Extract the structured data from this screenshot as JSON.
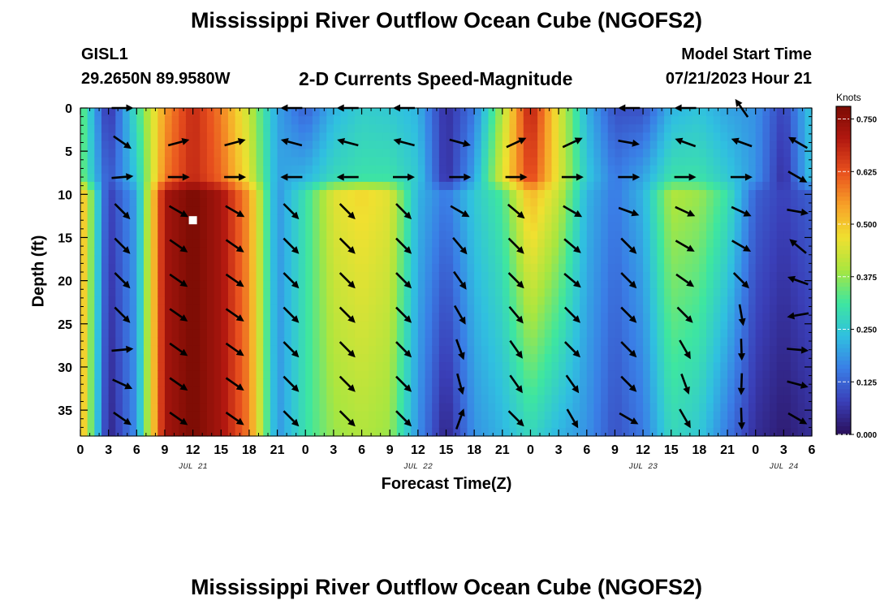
{
  "header": {
    "title": "Mississippi River Outflow Ocean Cube (NGOFS2)",
    "station": "GISL1",
    "coords": "29.2650N  89.9580W",
    "subtitle": "2-D Currents Speed-Magnitude",
    "model_start_label": "Model Start Time",
    "model_start_value": "07/21/2023 Hour 21",
    "footer_title": "Mississippi River Outflow Ocean Cube (NGOFS2)"
  },
  "colors": {
    "ramp": [
      "#2a0f5a",
      "#3a3fb8",
      "#3a7ee6",
      "#30c0e0",
      "#3ee6a0",
      "#a8e640",
      "#f0e030",
      "#f7a028",
      "#e8501e",
      "#b21810",
      "#7a0c04"
    ]
  },
  "chart_data": {
    "type": "heatmap",
    "title": "2-D Currents Speed-Magnitude",
    "xlabel": "Forecast Time(Z)",
    "ylabel": "Depth (ft)",
    "x_range_hours": [
      0,
      78
    ],
    "ylim": [
      0,
      38
    ],
    "y_inverted": true,
    "x_tick_labels": [
      "0",
      "3",
      "6",
      "9",
      "12",
      "15",
      "18",
      "21",
      "0",
      "3",
      "6",
      "9",
      "12",
      "15",
      "18",
      "21",
      "0",
      "3",
      "6",
      "9",
      "12",
      "15",
      "18",
      "21",
      "0",
      "3",
      "6"
    ],
    "y_ticks": [
      0,
      5,
      10,
      15,
      20,
      25,
      30,
      35
    ],
    "date_labels": [
      {
        "label": "JUL 21",
        "hour": 12
      },
      {
        "label": "JUL 22",
        "hour": 36
      },
      {
        "label": "JUL 23",
        "hour": 60
      },
      {
        "label": "JUL 24",
        "hour": 75
      }
    ],
    "colorbar": {
      "unit": "Knots",
      "min": 0.0,
      "max": 0.78,
      "tick_values": [
        0.0,
        0.125,
        0.25,
        0.375,
        0.5,
        0.625,
        0.75
      ],
      "tick_labels": [
        "0.000",
        "0.125",
        "0.250",
        "0.375",
        "0.500",
        "0.625",
        "0.750"
      ]
    },
    "time_hours": [
      0,
      3,
      6,
      9,
      12,
      15,
      18,
      21,
      24,
      27,
      30,
      33,
      36,
      39,
      42,
      45,
      48,
      51,
      54,
      57,
      60,
      63,
      66,
      69,
      72,
      75,
      78
    ],
    "depth_ft": [
      0,
      8,
      10,
      38
    ],
    "speed_knots": [
      [
        0.36,
        0.36,
        0.55,
        0.55
      ],
      [
        0.05,
        0.1,
        0.07,
        0.03
      ],
      [
        0.3,
        0.25,
        0.2,
        0.18
      ],
      [
        0.55,
        0.58,
        0.72,
        0.72
      ],
      [
        0.68,
        0.68,
        0.78,
        0.78
      ],
      [
        0.58,
        0.6,
        0.72,
        0.72
      ],
      [
        0.42,
        0.45,
        0.55,
        0.58
      ],
      [
        0.2,
        0.2,
        0.18,
        0.18
      ],
      [
        0.12,
        0.22,
        0.3,
        0.3
      ],
      [
        0.22,
        0.28,
        0.45,
        0.38
      ],
      [
        0.26,
        0.3,
        0.48,
        0.4
      ],
      [
        0.25,
        0.3,
        0.45,
        0.38
      ],
      [
        0.22,
        0.25,
        0.22,
        0.18
      ],
      [
        0.05,
        0.05,
        0.15,
        0.03
      ],
      [
        0.15,
        0.2,
        0.25,
        0.18
      ],
      [
        0.4,
        0.45,
        0.32,
        0.22
      ],
      [
        0.7,
        0.65,
        0.52,
        0.28
      ],
      [
        0.45,
        0.45,
        0.42,
        0.22
      ],
      [
        0.22,
        0.25,
        0.22,
        0.18
      ],
      [
        0.1,
        0.15,
        0.15,
        0.1
      ],
      [
        0.1,
        0.2,
        0.22,
        0.15
      ],
      [
        0.22,
        0.3,
        0.4,
        0.28
      ],
      [
        0.24,
        0.3,
        0.38,
        0.25
      ],
      [
        0.2,
        0.25,
        0.3,
        0.15
      ],
      [
        0.18,
        0.18,
        0.12,
        0.05
      ],
      [
        0.08,
        0.05,
        0.08,
        0.02
      ],
      [
        0.25,
        0.25,
        0.12,
        0.05
      ]
    ],
    "arrows": [
      {
        "t": 4.5,
        "d": 0,
        "dir": 0
      },
      {
        "t": 4.5,
        "d": 4,
        "dir": 35
      },
      {
        "t": 4.5,
        "d": 8,
        "dir": -5
      },
      {
        "t": 4.5,
        "d": 12,
        "dir": 45
      },
      {
        "t": 4.5,
        "d": 16,
        "dir": 45
      },
      {
        "t": 4.5,
        "d": 20,
        "dir": 45
      },
      {
        "t": 4.5,
        "d": 24,
        "dir": 45
      },
      {
        "t": 4.5,
        "d": 28,
        "dir": -5
      },
      {
        "t": 4.5,
        "d": 32,
        "dir": 25
      },
      {
        "t": 4.5,
        "d": 36,
        "dir": 35
      },
      {
        "t": 10.5,
        "d": 4,
        "dir": -15
      },
      {
        "t": 10.5,
        "d": 8,
        "dir": 0
      },
      {
        "t": 10.5,
        "d": 12,
        "dir": 30
      },
      {
        "t": 10.5,
        "d": 16,
        "dir": 35
      },
      {
        "t": 10.5,
        "d": 20,
        "dir": 35
      },
      {
        "t": 10.5,
        "d": 24,
        "dir": 35
      },
      {
        "t": 10.5,
        "d": 28,
        "dir": 35
      },
      {
        "t": 10.5,
        "d": 32,
        "dir": 35
      },
      {
        "t": 10.5,
        "d": 36,
        "dir": 35
      },
      {
        "t": 16.5,
        "d": 4,
        "dir": -15
      },
      {
        "t": 16.5,
        "d": 8,
        "dir": 0
      },
      {
        "t": 16.5,
        "d": 12,
        "dir": 30
      },
      {
        "t": 16.5,
        "d": 16,
        "dir": 35
      },
      {
        "t": 16.5,
        "d": 20,
        "dir": 35
      },
      {
        "t": 16.5,
        "d": 24,
        "dir": 35
      },
      {
        "t": 16.5,
        "d": 28,
        "dir": 35
      },
      {
        "t": 16.5,
        "d": 32,
        "dir": 35
      },
      {
        "t": 16.5,
        "d": 36,
        "dir": 35
      },
      {
        "t": 22.5,
        "d": 0,
        "dir": 180
      },
      {
        "t": 22.5,
        "d": 4,
        "dir": -165
      },
      {
        "t": 22.5,
        "d": 8,
        "dir": 180
      },
      {
        "t": 22.5,
        "d": 12,
        "dir": 45
      },
      {
        "t": 22.5,
        "d": 16,
        "dir": 45
      },
      {
        "t": 22.5,
        "d": 20,
        "dir": 45
      },
      {
        "t": 22.5,
        "d": 24,
        "dir": 45
      },
      {
        "t": 22.5,
        "d": 28,
        "dir": 45
      },
      {
        "t": 22.5,
        "d": 32,
        "dir": 45
      },
      {
        "t": 22.5,
        "d": 36,
        "dir": 45
      },
      {
        "t": 28.5,
        "d": 0,
        "dir": 180
      },
      {
        "t": 28.5,
        "d": 4,
        "dir": -165
      },
      {
        "t": 28.5,
        "d": 8,
        "dir": 180
      },
      {
        "t": 28.5,
        "d": 12,
        "dir": 45
      },
      {
        "t": 28.5,
        "d": 16,
        "dir": 45
      },
      {
        "t": 28.5,
        "d": 20,
        "dir": 45
      },
      {
        "t": 28.5,
        "d": 24,
        "dir": 45
      },
      {
        "t": 28.5,
        "d": 28,
        "dir": 45
      },
      {
        "t": 28.5,
        "d": 32,
        "dir": 45
      },
      {
        "t": 28.5,
        "d": 36,
        "dir": 45
      },
      {
        "t": 34.5,
        "d": 0,
        "dir": 180
      },
      {
        "t": 34.5,
        "d": 4,
        "dir": -165
      },
      {
        "t": 34.5,
        "d": 8,
        "dir": 0
      },
      {
        "t": 34.5,
        "d": 12,
        "dir": 45
      },
      {
        "t": 34.5,
        "d": 16,
        "dir": 45
      },
      {
        "t": 34.5,
        "d": 20,
        "dir": 45
      },
      {
        "t": 34.5,
        "d": 24,
        "dir": 45
      },
      {
        "t": 34.5,
        "d": 28,
        "dir": 45
      },
      {
        "t": 34.5,
        "d": 32,
        "dir": 45
      },
      {
        "t": 34.5,
        "d": 36,
        "dir": 45
      },
      {
        "t": 40.5,
        "d": 4,
        "dir": 15
      },
      {
        "t": 40.5,
        "d": 8,
        "dir": 0
      },
      {
        "t": 40.5,
        "d": 12,
        "dir": 30
      },
      {
        "t": 40.5,
        "d": 16,
        "dir": 50
      },
      {
        "t": 40.5,
        "d": 20,
        "dir": 55
      },
      {
        "t": 40.5,
        "d": 24,
        "dir": 60
      },
      {
        "t": 40.5,
        "d": 28,
        "dir": 70
      },
      {
        "t": 40.5,
        "d": 32,
        "dir": 75
      },
      {
        "t": 40.5,
        "d": 36,
        "dir": -70
      },
      {
        "t": 46.5,
        "d": 4,
        "dir": -25
      },
      {
        "t": 46.5,
        "d": 8,
        "dir": 0
      },
      {
        "t": 46.5,
        "d": 12,
        "dir": 40
      },
      {
        "t": 46.5,
        "d": 16,
        "dir": 45
      },
      {
        "t": 46.5,
        "d": 20,
        "dir": 45
      },
      {
        "t": 46.5,
        "d": 24,
        "dir": 50
      },
      {
        "t": 46.5,
        "d": 28,
        "dir": 55
      },
      {
        "t": 46.5,
        "d": 32,
        "dir": 55
      },
      {
        "t": 46.5,
        "d": 36,
        "dir": 45
      },
      {
        "t": 52.5,
        "d": 4,
        "dir": -25
      },
      {
        "t": 52.5,
        "d": 8,
        "dir": 0
      },
      {
        "t": 52.5,
        "d": 12,
        "dir": 30
      },
      {
        "t": 52.5,
        "d": 16,
        "dir": 40
      },
      {
        "t": 52.5,
        "d": 20,
        "dir": 40
      },
      {
        "t": 52.5,
        "d": 24,
        "dir": 45
      },
      {
        "t": 52.5,
        "d": 28,
        "dir": 45
      },
      {
        "t": 52.5,
        "d": 32,
        "dir": 55
      },
      {
        "t": 52.5,
        "d": 36,
        "dir": 60
      },
      {
        "t": 58.5,
        "d": 0,
        "dir": 180
      },
      {
        "t": 58.5,
        "d": 4,
        "dir": 10
      },
      {
        "t": 58.5,
        "d": 8,
        "dir": 0
      },
      {
        "t": 58.5,
        "d": 12,
        "dir": 20
      },
      {
        "t": 58.5,
        "d": 16,
        "dir": 45
      },
      {
        "t": 58.5,
        "d": 20,
        "dir": 45
      },
      {
        "t": 58.5,
        "d": 24,
        "dir": 45
      },
      {
        "t": 58.5,
        "d": 28,
        "dir": 45
      },
      {
        "t": 58.5,
        "d": 32,
        "dir": 45
      },
      {
        "t": 58.5,
        "d": 36,
        "dir": 30
      },
      {
        "t": 64.5,
        "d": 0,
        "dir": 180
      },
      {
        "t": 64.5,
        "d": 4,
        "dir": -160
      },
      {
        "t": 64.5,
        "d": 8,
        "dir": 0
      },
      {
        "t": 64.5,
        "d": 12,
        "dir": 25
      },
      {
        "t": 64.5,
        "d": 16,
        "dir": 30
      },
      {
        "t": 64.5,
        "d": 20,
        "dir": 35
      },
      {
        "t": 64.5,
        "d": 24,
        "dir": 45
      },
      {
        "t": 64.5,
        "d": 28,
        "dir": 60
      },
      {
        "t": 64.5,
        "d": 32,
        "dir": 70
      },
      {
        "t": 64.5,
        "d": 36,
        "dir": 60
      },
      {
        "t": 70.5,
        "d": 0,
        "dir": -125
      },
      {
        "t": 70.5,
        "d": 4,
        "dir": -160
      },
      {
        "t": 70.5,
        "d": 8,
        "dir": 0
      },
      {
        "t": 70.5,
        "d": 12,
        "dir": 25
      },
      {
        "t": 70.5,
        "d": 16,
        "dir": 30
      },
      {
        "t": 70.5,
        "d": 20,
        "dir": 45
      },
      {
        "t": 70.5,
        "d": 24,
        "dir": 80
      },
      {
        "t": 70.5,
        "d": 28,
        "dir": 88
      },
      {
        "t": 70.5,
        "d": 32,
        "dir": 92
      },
      {
        "t": 70.5,
        "d": 36,
        "dir": 88
      },
      {
        "t": 76.5,
        "d": 4,
        "dir": -150
      },
      {
        "t": 76.5,
        "d": 8,
        "dir": 30
      },
      {
        "t": 76.5,
        "d": 12,
        "dir": 10
      },
      {
        "t": 76.5,
        "d": 16,
        "dir": -140
      },
      {
        "t": 76.5,
        "d": 20,
        "dir": -160
      },
      {
        "t": 76.5,
        "d": 24,
        "dir": 170
      },
      {
        "t": 76.5,
        "d": 28,
        "dir": 5
      },
      {
        "t": 76.5,
        "d": 32,
        "dir": 15
      },
      {
        "t": 76.5,
        "d": 36,
        "dir": 30
      }
    ],
    "marker": {
      "t": 12,
      "d": 13
    }
  }
}
